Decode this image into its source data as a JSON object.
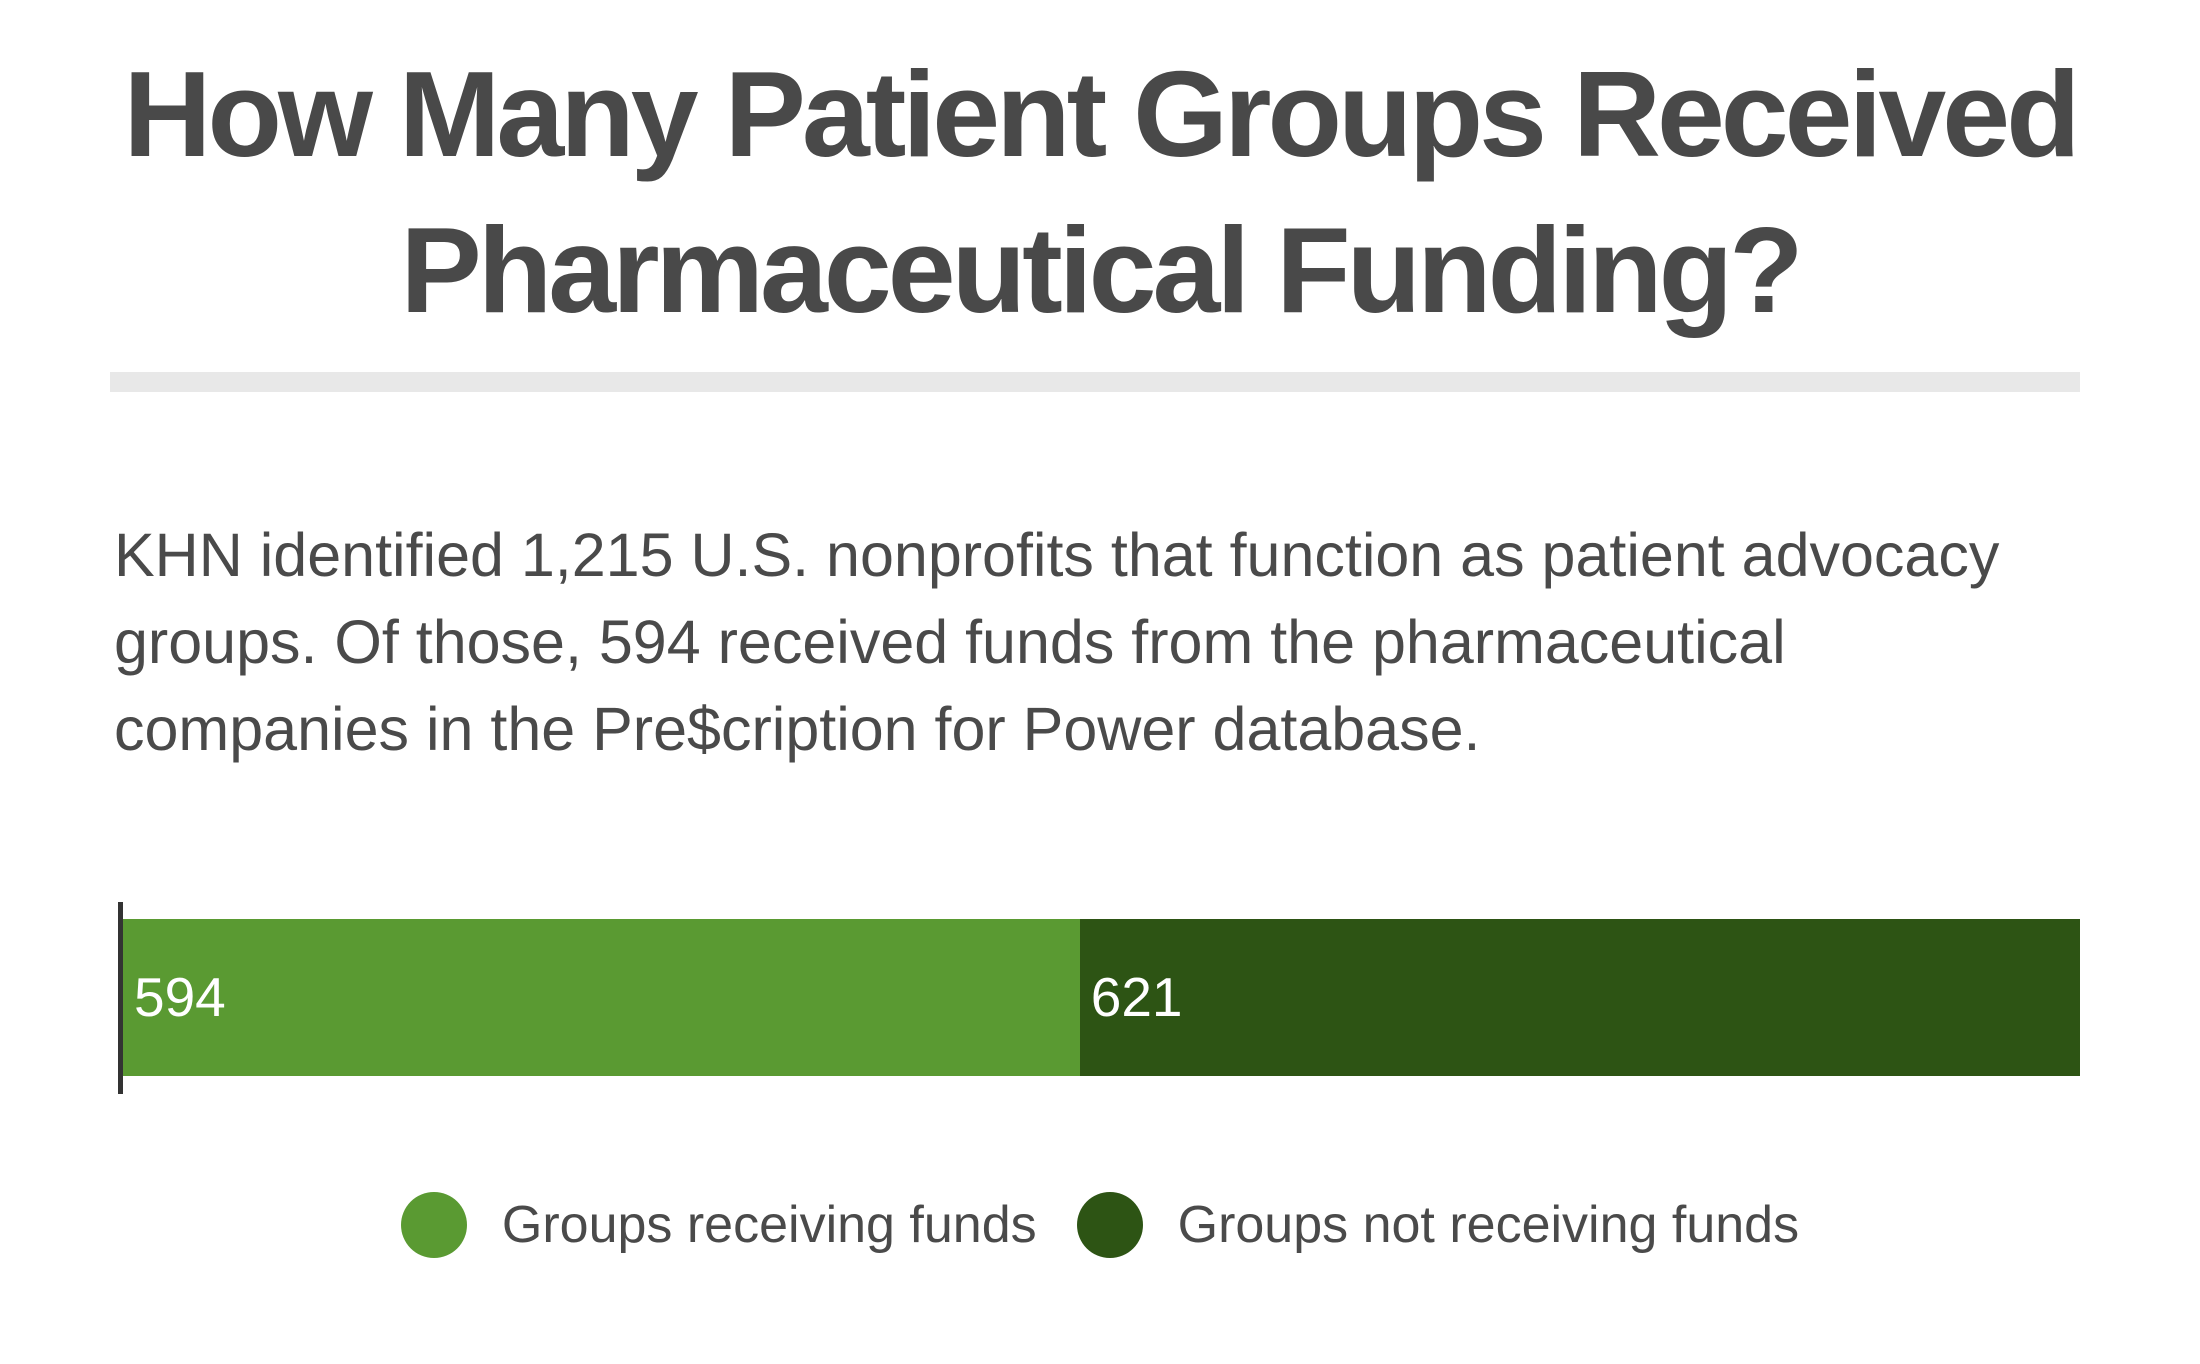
{
  "title": {
    "lines": [
      "How Many Patient Groups Received",
      "Pharmaceutical Funding?"
    ]
  },
  "intro": {
    "lines": [
      "KHN identified 1,215 U.S. nonprofits that function as patient advocacy",
      "groups. Of those, 594 received funds from the pharmaceutical",
      "companies in the Pre$cription for Power database."
    ]
  },
  "chart_data": {
    "type": "bar",
    "orientation": "horizontal",
    "stacked": true,
    "title": "How Many Patient Groups Received Pharmaceutical Funding?",
    "total": 1215,
    "series": [
      {
        "name": "Groups receiving funds",
        "value": 594,
        "color": "#5a9a32"
      },
      {
        "name": "Groups not receiving funds",
        "value": 621,
        "color": "#2d5414"
      }
    ],
    "value_labels": [
      "594",
      "621"
    ],
    "value_label_color": "#ffffff",
    "axis_line_color": "#333333",
    "legend_position": "bottom-center",
    "grid": false
  },
  "legend": {
    "items": [
      {
        "label": "Groups receiving funds",
        "color": "#5a9a32"
      },
      {
        "label": "Groups not receiving funds",
        "color": "#2d5414"
      }
    ]
  },
  "colors": {
    "text": "#4a4a4a",
    "divider": "#e8e8e8",
    "background": "#ffffff"
  }
}
